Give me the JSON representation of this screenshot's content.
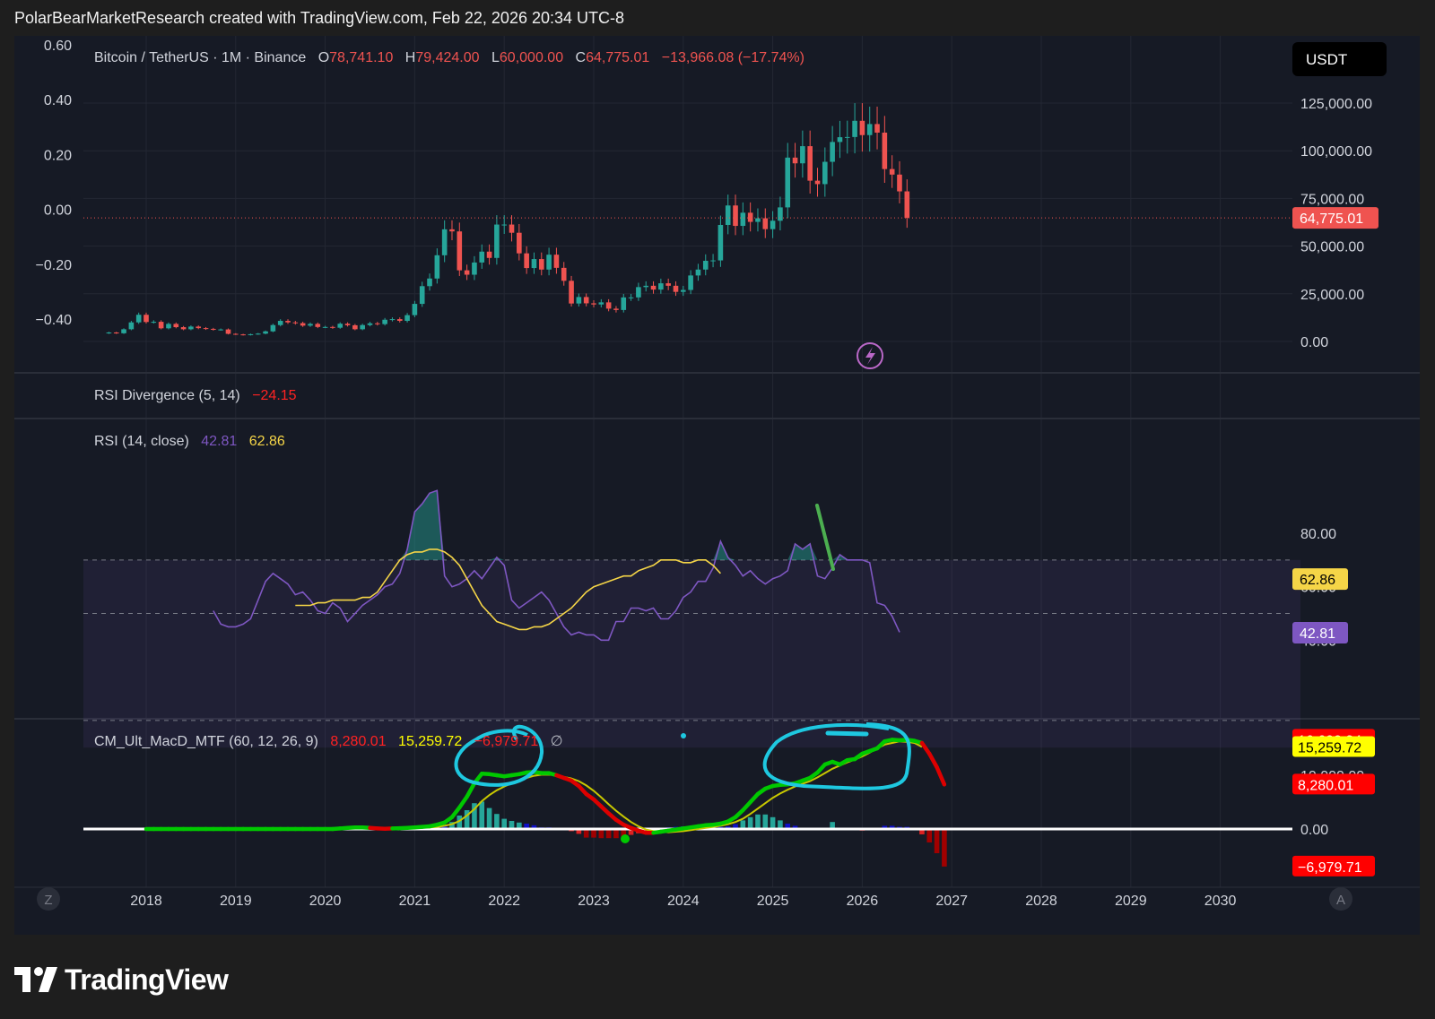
{
  "header": "PolarBearMarketResearch created with TradingView.com, Feb 22, 2026 20:34 UTC-8",
  "brand": "TradingView",
  "currency_button": "USDT",
  "colors": {
    "up": "#26a69a",
    "down": "#ef5350",
    "bg": "#161a25",
    "rsi": "#7e57c2",
    "rsi_ma": "#f5d547",
    "macd_green": "#00c800",
    "macd_red": "#dd0000",
    "signal": "#c8c800",
    "annotation_cyan": "#1ec8e0",
    "annotation_green": "#4caf50"
  },
  "icons": {
    "zoom": "Z",
    "auto": "A",
    "alert": "lightning-bolt-icon"
  },
  "legend": {
    "symbol": "Bitcoin / TetherUS · 1M · Binance",
    "o_label": "O",
    "o": "78,741.10",
    "h_label": "H",
    "h": "79,424.00",
    "l_label": "L",
    "l": "60,000.00",
    "c_label": "C",
    "c": "64,775.01",
    "change": "−13,966.08 (−17.74%)"
  },
  "rsi_div_legend": {
    "name": "RSI Divergence (5, 14)",
    "value": "−24.15"
  },
  "rsi_legend": {
    "name": "RSI (14, close)",
    "rsi": "42.81",
    "ma": "62.86"
  },
  "macd_legend": {
    "name": "CM_Ult_MacD_MTF (60, 12, 26, 9)",
    "v1": "8,280.01",
    "v2": "15,259.72",
    "v3": "−6,979.71",
    "v4": "∅"
  },
  "chart_data": [
    {
      "type": "candlestick",
      "title": "Bitcoin / TetherUS · 1M · Binance",
      "interval": "monthly, Aug 2017 – Feb 2026",
      "note": "values approximated from chart",
      "x_ticks": [
        "2018",
        "2019",
        "2020",
        "2021",
        "2022",
        "2023",
        "2024",
        "2025",
        "2026",
        "2027",
        "2028",
        "2029",
        "2030"
      ],
      "right_axis_ticks": [
        "125,000.00",
        "100,000.00",
        "75,000.00",
        "50,000.00",
        "25,000.00",
        "0.00"
      ],
      "left_axis_ticks": [
        "0.60",
        "0.40",
        "0.20",
        "0.00",
        "−0.20",
        "−0.40"
      ],
      "last_price_label": "64,775.01",
      "ylim": [
        -20000,
        160000
      ],
      "closes": [
        4700,
        4300,
        6400,
        10000,
        14000,
        10200,
        10300,
        6900,
        9200,
        7500,
        6400,
        7800,
        7000,
        6600,
        6200,
        6300,
        4000,
        3700,
        3400,
        3800,
        4100,
        5300,
        8600,
        10800,
        10000,
        9600,
        8300,
        9200,
        7600,
        7600,
        7200,
        9300,
        8500,
        6400,
        8600,
        9500,
        9100,
        11400,
        11700,
        10800,
        13800,
        19700,
        29000,
        33000,
        45200,
        58800,
        57700,
        37300,
        35000,
        41400,
        47100,
        43800,
        61300,
        61300,
        57000,
        46200,
        38500,
        43200,
        37700,
        45500,
        38600,
        31800,
        19900,
        23300,
        20000,
        19400,
        20500,
        17200,
        16500,
        23100,
        23100,
        28500,
        29200,
        27200,
        30500,
        29200,
        26000,
        27000,
        34600,
        37700,
        42300,
        42500,
        61100,
        71300,
        60600,
        67500,
        62700,
        64600,
        58900,
        63300,
        70300,
        96400,
        93400,
        102400,
        84300,
        82500,
        94200,
        104600,
        107100,
        107200,
        115700,
        108200,
        114000,
        109500,
        90400,
        87500,
        78700,
        64800
      ]
    },
    {
      "type": "line",
      "title": "RSI (14, close)",
      "right_axis_ticks": [
        "80.00",
        "60.00",
        "40.00"
      ],
      "bands": [
        30,
        50,
        70
      ],
      "ylim": [
        17,
        107
      ],
      "last_rsi": "42.81",
      "last_ma": "62.86",
      "series": [
        {
          "name": "RSI",
          "start_month": "2018-10",
          "values": [
            51,
            46,
            45,
            45,
            46,
            48,
            55,
            62,
            65,
            63,
            61,
            57,
            58,
            55,
            51,
            50,
            54,
            52,
            47,
            50,
            53,
            55,
            57,
            60,
            61,
            65,
            74,
            88,
            91,
            95,
            96,
            64,
            60,
            61,
            63,
            66,
            63,
            67,
            71,
            68,
            55,
            52,
            54,
            56,
            58,
            55,
            50,
            45,
            42,
            43,
            42,
            42,
            40,
            40,
            47,
            47,
            52,
            52,
            51,
            52,
            48,
            48,
            51,
            56,
            58,
            62,
            62,
            67,
            77,
            71,
            68,
            64,
            66,
            63,
            61,
            63,
            64,
            66,
            76,
            74,
            76,
            64,
            63,
            67,
            72,
            70,
            70,
            70,
            69,
            54,
            53,
            49,
            43
          ]
        },
        {
          "name": "RSI MA",
          "start_month": "2019-09",
          "values": [
            53,
            53,
            53,
            54,
            54,
            55,
            55,
            55,
            55,
            56,
            56,
            58,
            62,
            66,
            70,
            72,
            73,
            73,
            74,
            74,
            73,
            71,
            68,
            63,
            58,
            53,
            50,
            47,
            46,
            45,
            44,
            44,
            45,
            45,
            46,
            48,
            50,
            52,
            55,
            58,
            60,
            61,
            62,
            63,
            64,
            64,
            66,
            67,
            68,
            70,
            70,
            70,
            69,
            69,
            70,
            70,
            68,
            65
          ]
        }
      ]
    },
    {
      "type": "bar+line",
      "title": "CM_Ult_MacD_MTF (60, 12, 26, 9)",
      "right_axis_ticks": [
        "16,602.34",
        "15,259.72",
        "10,000.00",
        "8,280.01",
        "0.00",
        "−6,979.71"
      ],
      "ylim": [
        -8600,
        20000
      ],
      "series": [
        {
          "name": "MACD",
          "values": [
            0,
            0,
            0,
            0,
            0,
            0,
            0,
            0,
            0,
            0,
            0,
            0,
            0,
            0,
            0,
            0,
            0,
            0,
            0,
            0,
            0,
            0,
            0,
            0,
            0,
            0,
            100,
            200,
            300,
            300,
            200,
            100,
            50,
            100,
            150,
            200,
            300,
            400,
            500,
            800,
            1200,
            2200,
            4000,
            6000,
            8500,
            10300,
            10200,
            10000,
            9800,
            10000,
            10200,
            10500,
            10600,
            10400,
            10400,
            10000,
            9500,
            9000,
            8000,
            6500,
            5500,
            4200,
            2900,
            1700,
            800,
            200,
            -300,
            -700,
            -700,
            -500,
            -300,
            -100,
            100,
            300,
            500,
            700,
            800,
            1000,
            1400,
            2200,
            3500,
            5000,
            6500,
            7500,
            8000,
            8200,
            8300,
            8500,
            9000,
            9500,
            10500,
            12000,
            12500,
            12000,
            12800,
            13000,
            14000,
            14500,
            15000,
            16300,
            16600,
            16500,
            16600,
            16400,
            16000,
            14000,
            11500,
            8280
          ]
        },
        {
          "name": "Signal",
          "values": [
            0,
            0,
            0,
            0,
            0,
            0,
            0,
            0,
            0,
            0,
            0,
            0,
            0,
            0,
            0,
            0,
            0,
            0,
            0,
            0,
            0,
            0,
            0,
            0,
            0,
            0,
            0,
            50,
            100,
            150,
            200,
            200,
            150,
            150,
            150,
            150,
            200,
            250,
            300,
            400,
            600,
            900,
            1500,
            2500,
            3700,
            5200,
            6300,
            7200,
            7900,
            8500,
            9000,
            9500,
            9900,
            10100,
            10100,
            10000,
            9700,
            9400,
            8900,
            8100,
            7100,
            5900,
            4600,
            3400,
            2300,
            1300,
            500,
            -100,
            -400,
            -500,
            -600,
            -500,
            -400,
            -200,
            0,
            200,
            400,
            600,
            900,
            1300,
            1900,
            2800,
            3800,
            4800,
            5800,
            6600,
            7300,
            7900,
            8400,
            8900,
            9600,
            10400,
            11200,
            11800,
            12400,
            12900,
            13500,
            14200,
            15000,
            15700,
            16000,
            16300,
            16200,
            16000,
            15259
          ]
        },
        {
          "name": "Histogram",
          "values": [
            0,
            0,
            0,
            0,
            0,
            0,
            0,
            0,
            0,
            0,
            0,
            0,
            0,
            0,
            0,
            0,
            0,
            0,
            0,
            0,
            0,
            0,
            0,
            0,
            0,
            0,
            100,
            150,
            200,
            150,
            0,
            -100,
            -100,
            -50,
            0,
            50,
            100,
            150,
            200,
            400,
            600,
            1300,
            2500,
            3500,
            4800,
            5100,
            3900,
            2800,
            1900,
            1500,
            1200,
            1000,
            700,
            300,
            300,
            0,
            -200,
            -400,
            -900,
            -1600,
            -1600,
            -1700,
            -1700,
            -1700,
            -1500,
            -1100,
            -800,
            -600,
            -300,
            0,
            300,
            400,
            500,
            500,
            500,
            500,
            400,
            400,
            500,
            900,
            1600,
            2200,
            2700,
            2700,
            2200,
            1600,
            1000,
            600,
            100,
            100,
            0,
            100,
            1300,
            200,
            100,
            -100,
            -300,
            -100,
            0,
            600,
            600,
            400,
            400,
            200,
            -1000,
            -2500,
            -4500,
            -6980
          ]
        }
      ]
    }
  ]
}
